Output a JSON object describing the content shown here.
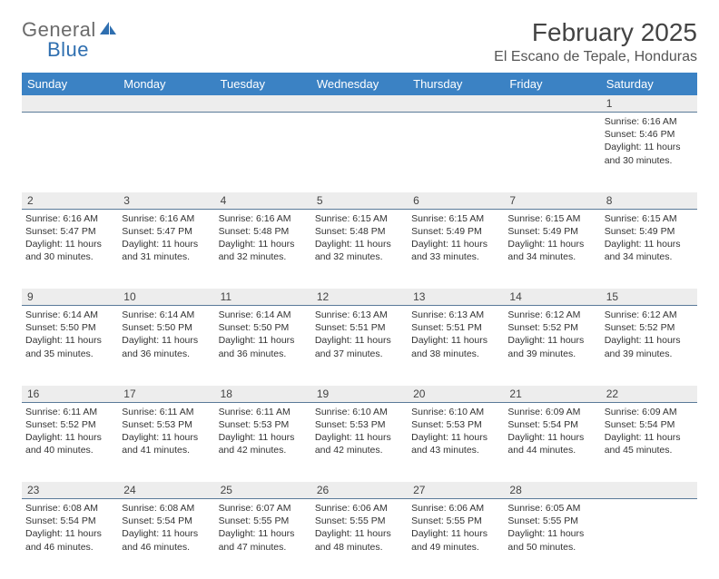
{
  "brand": {
    "name_part1": "General",
    "name_part2": "Blue",
    "color_general": "#6b6b6b",
    "color_blue": "#2f6fb0",
    "icon_fill": "#2f6fb0"
  },
  "title": "February 2025",
  "location": "El Escano de Tepale, Honduras",
  "day_headers": [
    "Sunday",
    "Monday",
    "Tuesday",
    "Wednesday",
    "Thursday",
    "Friday",
    "Saturday"
  ],
  "header_bg": "#3b82c4",
  "header_fg": "#ffffff",
  "divider_color": "#5a7a99",
  "daynum_bg": "#ededed",
  "weeks": [
    {
      "nums": [
        "",
        "",
        "",
        "",
        "",
        "",
        "1"
      ],
      "cells": [
        null,
        null,
        null,
        null,
        null,
        null,
        {
          "sunrise": "6:16 AM",
          "sunset": "5:46 PM",
          "daylight": "11 hours and 30 minutes."
        }
      ]
    },
    {
      "nums": [
        "2",
        "3",
        "4",
        "5",
        "6",
        "7",
        "8"
      ],
      "cells": [
        {
          "sunrise": "6:16 AM",
          "sunset": "5:47 PM",
          "daylight": "11 hours and 30 minutes."
        },
        {
          "sunrise": "6:16 AM",
          "sunset": "5:47 PM",
          "daylight": "11 hours and 31 minutes."
        },
        {
          "sunrise": "6:16 AM",
          "sunset": "5:48 PM",
          "daylight": "11 hours and 32 minutes."
        },
        {
          "sunrise": "6:15 AM",
          "sunset": "5:48 PM",
          "daylight": "11 hours and 32 minutes."
        },
        {
          "sunrise": "6:15 AM",
          "sunset": "5:49 PM",
          "daylight": "11 hours and 33 minutes."
        },
        {
          "sunrise": "6:15 AM",
          "sunset": "5:49 PM",
          "daylight": "11 hours and 34 minutes."
        },
        {
          "sunrise": "6:15 AM",
          "sunset": "5:49 PM",
          "daylight": "11 hours and 34 minutes."
        }
      ]
    },
    {
      "nums": [
        "9",
        "10",
        "11",
        "12",
        "13",
        "14",
        "15"
      ],
      "cells": [
        {
          "sunrise": "6:14 AM",
          "sunset": "5:50 PM",
          "daylight": "11 hours and 35 minutes."
        },
        {
          "sunrise": "6:14 AM",
          "sunset": "5:50 PM",
          "daylight": "11 hours and 36 minutes."
        },
        {
          "sunrise": "6:14 AM",
          "sunset": "5:50 PM",
          "daylight": "11 hours and 36 minutes."
        },
        {
          "sunrise": "6:13 AM",
          "sunset": "5:51 PM",
          "daylight": "11 hours and 37 minutes."
        },
        {
          "sunrise": "6:13 AM",
          "sunset": "5:51 PM",
          "daylight": "11 hours and 38 minutes."
        },
        {
          "sunrise": "6:12 AM",
          "sunset": "5:52 PM",
          "daylight": "11 hours and 39 minutes."
        },
        {
          "sunrise": "6:12 AM",
          "sunset": "5:52 PM",
          "daylight": "11 hours and 39 minutes."
        }
      ]
    },
    {
      "nums": [
        "16",
        "17",
        "18",
        "19",
        "20",
        "21",
        "22"
      ],
      "cells": [
        {
          "sunrise": "6:11 AM",
          "sunset": "5:52 PM",
          "daylight": "11 hours and 40 minutes."
        },
        {
          "sunrise": "6:11 AM",
          "sunset": "5:53 PM",
          "daylight": "11 hours and 41 minutes."
        },
        {
          "sunrise": "6:11 AM",
          "sunset": "5:53 PM",
          "daylight": "11 hours and 42 minutes."
        },
        {
          "sunrise": "6:10 AM",
          "sunset": "5:53 PM",
          "daylight": "11 hours and 42 minutes."
        },
        {
          "sunrise": "6:10 AM",
          "sunset": "5:53 PM",
          "daylight": "11 hours and 43 minutes."
        },
        {
          "sunrise": "6:09 AM",
          "sunset": "5:54 PM",
          "daylight": "11 hours and 44 minutes."
        },
        {
          "sunrise": "6:09 AM",
          "sunset": "5:54 PM",
          "daylight": "11 hours and 45 minutes."
        }
      ]
    },
    {
      "nums": [
        "23",
        "24",
        "25",
        "26",
        "27",
        "28",
        ""
      ],
      "cells": [
        {
          "sunrise": "6:08 AM",
          "sunset": "5:54 PM",
          "daylight": "11 hours and 46 minutes."
        },
        {
          "sunrise": "6:08 AM",
          "sunset": "5:54 PM",
          "daylight": "11 hours and 46 minutes."
        },
        {
          "sunrise": "6:07 AM",
          "sunset": "5:55 PM",
          "daylight": "11 hours and 47 minutes."
        },
        {
          "sunrise": "6:06 AM",
          "sunset": "5:55 PM",
          "daylight": "11 hours and 48 minutes."
        },
        {
          "sunrise": "6:06 AM",
          "sunset": "5:55 PM",
          "daylight": "11 hours and 49 minutes."
        },
        {
          "sunrise": "6:05 AM",
          "sunset": "5:55 PM",
          "daylight": "11 hours and 50 minutes."
        },
        null
      ]
    }
  ],
  "labels": {
    "sunrise_prefix": "Sunrise: ",
    "sunset_prefix": "Sunset: ",
    "daylight_prefix": "Daylight: "
  }
}
